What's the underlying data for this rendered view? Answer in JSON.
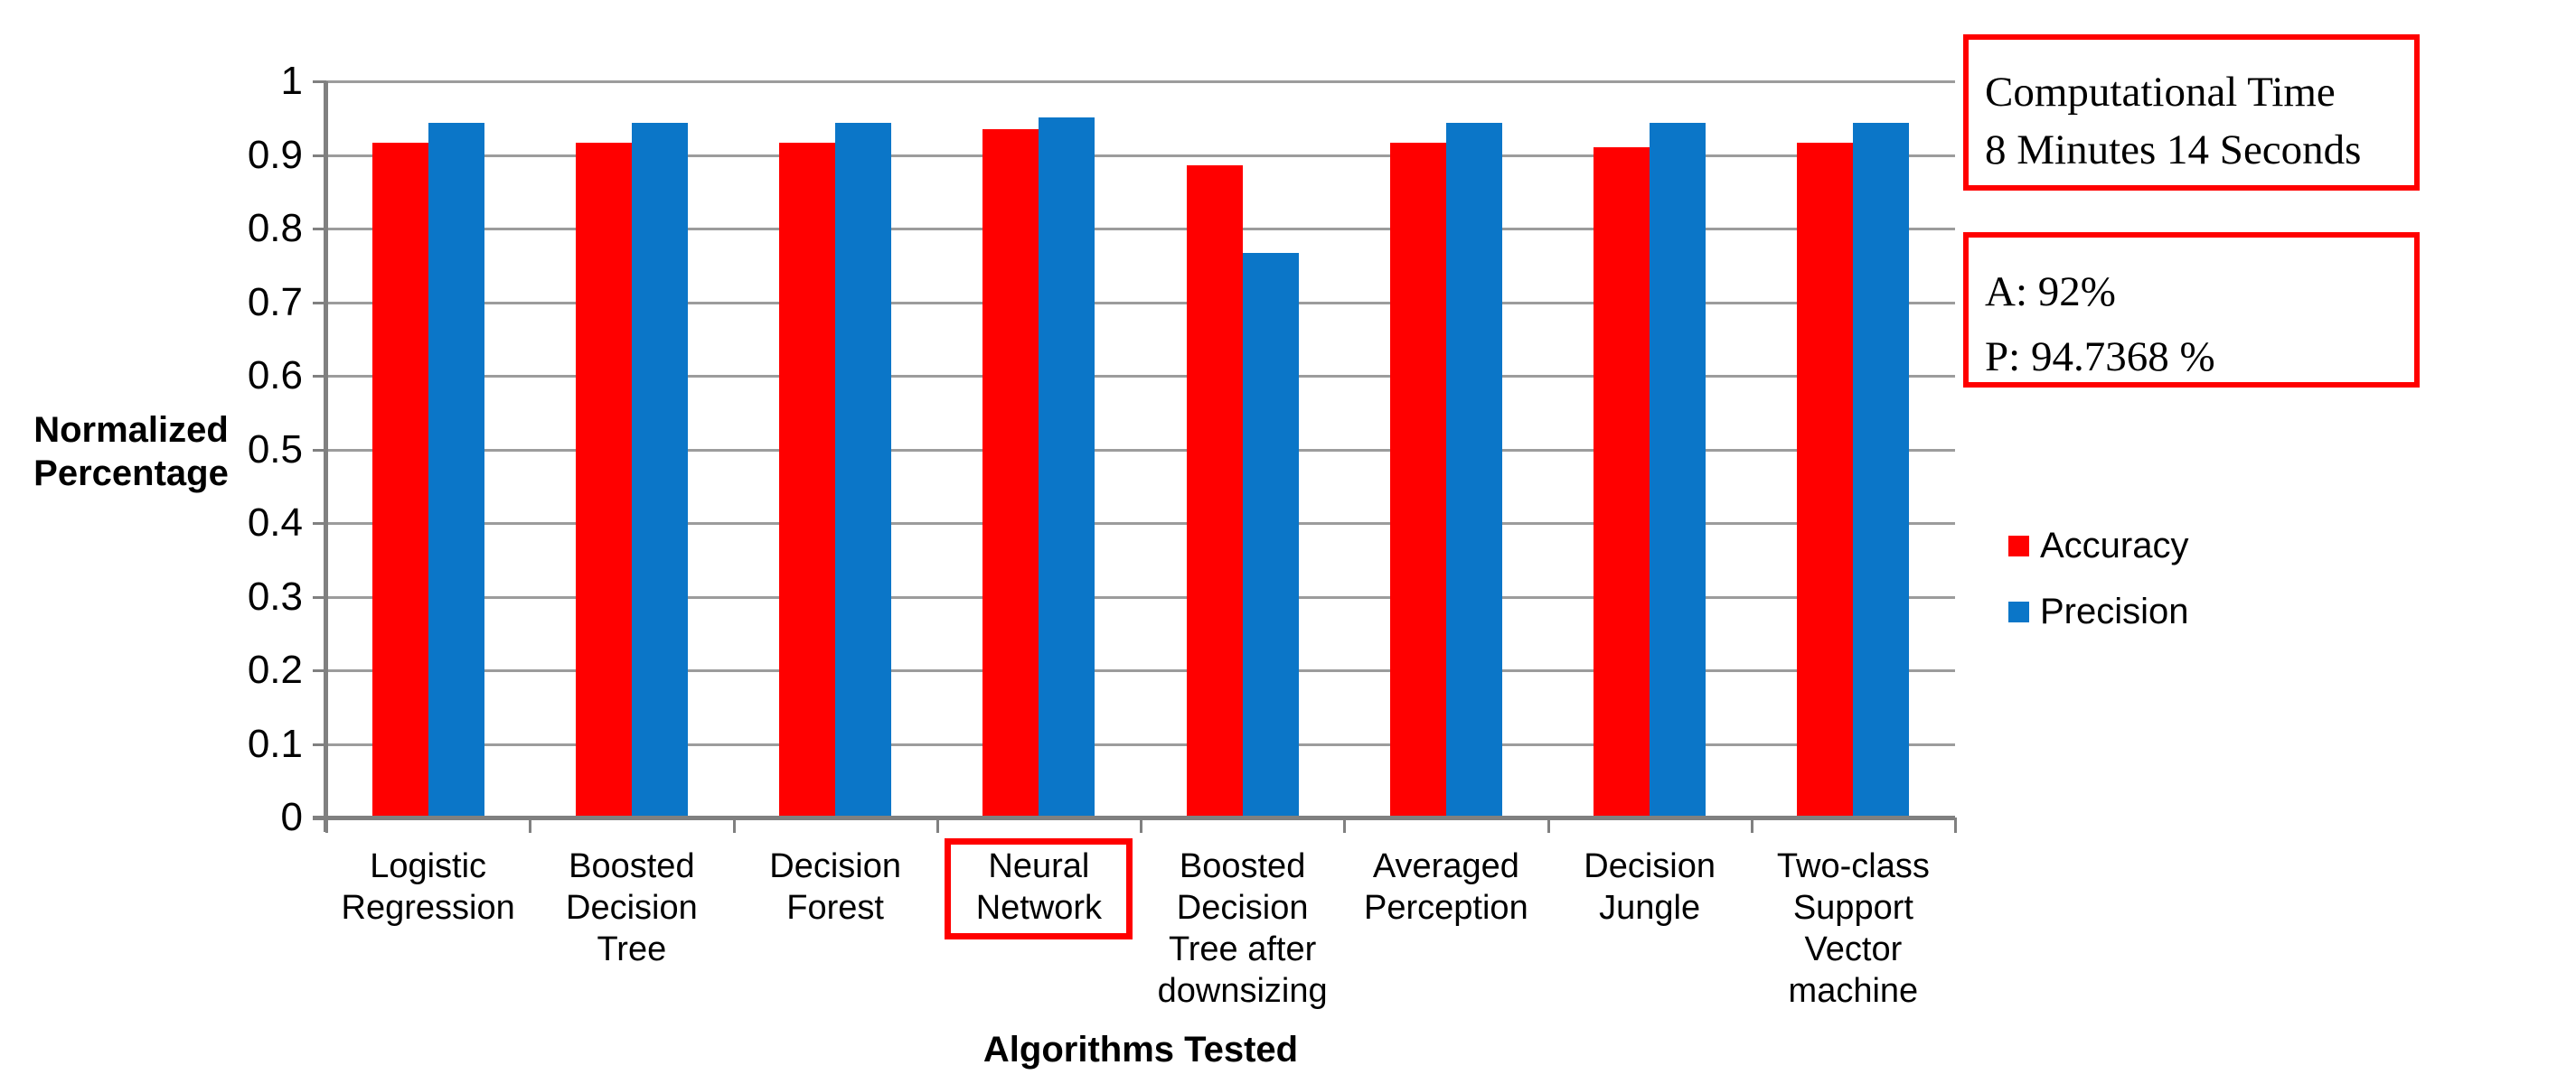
{
  "chart_data": {
    "type": "bar",
    "title": "",
    "xlabel": "Algorithms Tested",
    "ylabel": "Normalized Percentage",
    "ylim": [
      0,
      1
    ],
    "ytick_labels": [
      "1",
      "0.9",
      "0.8",
      "0.7",
      "0.6",
      "0.5",
      "0.4",
      "0.3",
      "0.2",
      "0.1",
      "0"
    ],
    "grid": true,
    "legend_position": "right",
    "categories": [
      "Logistic Regression",
      "Boosted Decision Tree",
      "Decision Forest",
      "Neural Network",
      "Boosted Decision Tree after downsizing",
      "Averaged Perception",
      "Decision Jungle",
      "Two-class Support Vector machine"
    ],
    "category_label_lines": [
      [
        "Logistic",
        "Regression"
      ],
      [
        "Boosted",
        "Decision",
        "Tree"
      ],
      [
        "Decision",
        "Forest"
      ],
      [
        "Neural",
        "Network"
      ],
      [
        "Boosted",
        "Decision",
        "Tree after",
        "downsizing"
      ],
      [
        "Averaged",
        "Perception"
      ],
      [
        "Decision",
        "Jungle"
      ],
      [
        "Two-class",
        "Support",
        "Vector",
        "machine"
      ]
    ],
    "highlighted_category": "Neural Network",
    "series": [
      {
        "name": "Accuracy",
        "color": "#FF0000",
        "values": [
          0.917,
          0.917,
          0.917,
          0.935,
          0.886,
          0.917,
          0.91,
          0.917
        ]
      },
      {
        "name": "Precision",
        "color": "#0B76C8",
        "values": [
          0.944,
          0.944,
          0.944,
          0.951,
          0.767,
          0.944,
          0.944,
          0.944
        ]
      }
    ]
  },
  "annotations": {
    "computational_time_box": {
      "line1": "Computational Time",
      "line2": "8 Minutes 14 Seconds"
    },
    "metrics_box": {
      "line1": "A: 92%",
      "line2": "P: 94.7368 %"
    }
  },
  "colors": {
    "accuracy": "#FF0000",
    "precision": "#0B76C8",
    "gridline": "#9C9C9C",
    "axis": "#808080",
    "highlight_border": "#FF0000",
    "annotation_border": "#FF0000",
    "text": "#000000"
  }
}
